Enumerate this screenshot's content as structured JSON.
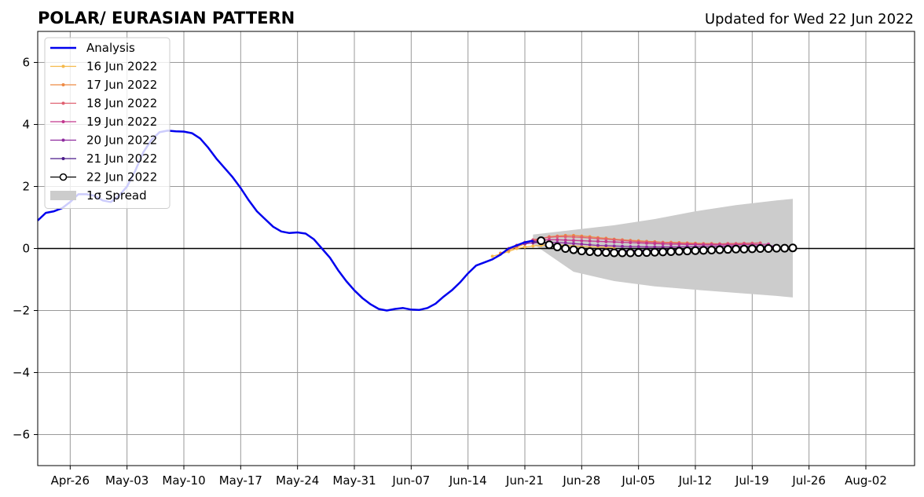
{
  "chart_data": {
    "type": "line",
    "title": "POLAR/ EURASIAN  PATTERN",
    "subtitle": "Updated for Wed 22 Jun 2022",
    "xlabel": "",
    "ylabel": "",
    "x_axis": {
      "type": "date",
      "range": [
        "2022-04-22",
        "2022-08-08"
      ],
      "ticks": [
        "2022-04-26",
        "2022-05-03",
        "2022-05-10",
        "2022-05-17",
        "2022-05-24",
        "2022-05-31",
        "2022-06-07",
        "2022-06-14",
        "2022-06-21",
        "2022-06-28",
        "2022-07-05",
        "2022-07-12",
        "2022-07-19",
        "2022-07-26",
        "2022-08-02"
      ],
      "tick_labels": [
        "Apr-26",
        "May-03",
        "May-10",
        "May-17",
        "May-24",
        "May-31",
        "Jun-07",
        "Jun-14",
        "Jun-21",
        "Jun-28",
        "Jul-05",
        "Jul-12",
        "Jul-19",
        "Jul-26",
        "Aug-02"
      ]
    },
    "y_axis": {
      "range": [
        -7,
        7
      ],
      "ticks": [
        -6,
        -4,
        -2,
        0,
        2,
        4,
        6
      ],
      "tick_labels": [
        "−6",
        "−4",
        "−2",
        "0",
        "2",
        "4",
        "6"
      ]
    },
    "grid": true,
    "zero_line": true,
    "legend_position": "top-left",
    "spread_color": "#cccccc",
    "spread_label": "1σ Spread",
    "spread": {
      "x": [
        "2022-06-22",
        "2022-06-27",
        "2022-07-02",
        "2022-07-07",
        "2022-07-12",
        "2022-07-17",
        "2022-07-22",
        "2022-07-24"
      ],
      "upper": [
        0.45,
        0.6,
        0.75,
        0.95,
        1.2,
        1.4,
        1.55,
        1.6
      ],
      "lower": [
        0.15,
        -0.75,
        -1.05,
        -1.22,
        -1.33,
        -1.43,
        -1.53,
        -1.58
      ]
    },
    "analysis": {
      "name": "Analysis",
      "color": "#0000ee",
      "x": [
        "2022-04-22",
        "2022-04-23",
        "2022-04-24",
        "2022-04-25",
        "2022-04-26",
        "2022-04-27",
        "2022-04-28",
        "2022-04-29",
        "2022-04-30",
        "2022-05-01",
        "2022-05-02",
        "2022-05-03",
        "2022-05-04",
        "2022-05-05",
        "2022-05-06",
        "2022-05-07",
        "2022-05-08",
        "2022-05-09",
        "2022-05-10",
        "2022-05-11",
        "2022-05-12",
        "2022-05-13",
        "2022-05-14",
        "2022-05-15",
        "2022-05-16",
        "2022-05-17",
        "2022-05-18",
        "2022-05-19",
        "2022-05-20",
        "2022-05-21",
        "2022-05-22",
        "2022-05-23",
        "2022-05-24",
        "2022-05-25",
        "2022-05-26",
        "2022-05-27",
        "2022-05-28",
        "2022-05-29",
        "2022-05-30",
        "2022-05-31",
        "2022-06-01",
        "2022-06-02",
        "2022-06-03",
        "2022-06-04",
        "2022-06-05",
        "2022-06-06",
        "2022-06-07",
        "2022-06-08",
        "2022-06-09",
        "2022-06-10",
        "2022-06-11",
        "2022-06-12",
        "2022-06-13",
        "2022-06-14",
        "2022-06-15",
        "2022-06-16",
        "2022-06-17",
        "2022-06-18",
        "2022-06-19",
        "2022-06-20",
        "2022-06-21",
        "2022-06-22"
      ],
      "y": [
        0.9,
        1.15,
        1.2,
        1.3,
        1.5,
        1.75,
        1.75,
        1.7,
        1.55,
        1.5,
        1.7,
        2.0,
        2.5,
        3.1,
        3.5,
        3.75,
        3.8,
        3.78,
        3.77,
        3.72,
        3.55,
        3.25,
        2.9,
        2.6,
        2.3,
        1.95,
        1.55,
        1.2,
        0.95,
        0.7,
        0.55,
        0.5,
        0.52,
        0.48,
        0.3,
        0.0,
        -0.3,
        -0.7,
        -1.05,
        -1.35,
        -1.6,
        -1.8,
        -1.95,
        -2.0,
        -1.95,
        -1.92,
        -1.97,
        -1.98,
        -1.92,
        -1.78,
        -1.55,
        -1.35,
        -1.1,
        -0.8,
        -0.55,
        -0.45,
        -0.35,
        -0.2,
        0.0,
        0.1,
        0.2,
        0.25
      ]
    },
    "series": [
      {
        "name": "16 Jun 2022",
        "color": "#f5b94a",
        "x": [
          "2022-06-17",
          "2022-06-18",
          "2022-06-19",
          "2022-06-20",
          "2022-06-21",
          "2022-06-22",
          "2022-06-23",
          "2022-06-24",
          "2022-06-25",
          "2022-06-26",
          "2022-06-27",
          "2022-06-28",
          "2022-06-29",
          "2022-06-30",
          "2022-07-01",
          "2022-07-02"
        ],
        "y": [
          -0.25,
          -0.18,
          -0.1,
          0.0,
          0.05,
          0.08,
          0.1,
          0.12,
          0.12,
          0.1,
          0.08,
          0.06,
          0.05,
          0.05,
          0.04,
          0.03
        ]
      },
      {
        "name": "17 Jun 2022",
        "color": "#ee8a44",
        "x": [
          "2022-06-18",
          "2022-06-19",
          "2022-06-20",
          "2022-06-21",
          "2022-06-22",
          "2022-06-23",
          "2022-06-24",
          "2022-06-25",
          "2022-06-26",
          "2022-06-27",
          "2022-06-28",
          "2022-06-29",
          "2022-06-30",
          "2022-07-01",
          "2022-07-02",
          "2022-07-03",
          "2022-07-04",
          "2022-07-05",
          "2022-07-06",
          "2022-07-07",
          "2022-07-08",
          "2022-07-09",
          "2022-07-10",
          "2022-07-11",
          "2022-07-12",
          "2022-07-13",
          "2022-07-14",
          "2022-07-15",
          "2022-07-16",
          "2022-07-17",
          "2022-07-18",
          "2022-07-19"
        ],
        "y": [
          -0.15,
          -0.05,
          0.05,
          0.15,
          0.25,
          0.32,
          0.38,
          0.4,
          0.42,
          0.42,
          0.4,
          0.38,
          0.35,
          0.33,
          0.3,
          0.28,
          0.26,
          0.25,
          0.23,
          0.22,
          0.2,
          0.2,
          0.19,
          0.18,
          0.17,
          0.16,
          0.16,
          0.15,
          0.15,
          0.15,
          0.16,
          0.17
        ]
      },
      {
        "name": "18 Jun 2022",
        "color": "#e06070",
        "x": [
          "2022-06-19",
          "2022-06-20",
          "2022-06-21",
          "2022-06-22",
          "2022-06-23",
          "2022-06-24",
          "2022-06-25",
          "2022-06-26",
          "2022-06-27",
          "2022-06-28",
          "2022-06-29",
          "2022-06-30",
          "2022-07-01",
          "2022-07-02",
          "2022-07-03",
          "2022-07-04",
          "2022-07-05",
          "2022-07-06",
          "2022-07-07",
          "2022-07-08",
          "2022-07-09",
          "2022-07-10",
          "2022-07-11",
          "2022-07-12",
          "2022-07-13",
          "2022-07-14",
          "2022-07-15",
          "2022-07-16",
          "2022-07-17",
          "2022-07-18",
          "2022-07-19",
          "2022-07-20"
        ],
        "y": [
          0.0,
          0.1,
          0.2,
          0.28,
          0.33,
          0.36,
          0.38,
          0.38,
          0.37,
          0.36,
          0.34,
          0.32,
          0.3,
          0.28,
          0.26,
          0.24,
          0.22,
          0.21,
          0.2,
          0.19,
          0.18,
          0.17,
          0.16,
          0.15,
          0.15,
          0.15,
          0.15,
          0.16,
          0.16,
          0.17,
          0.17,
          0.18
        ]
      },
      {
        "name": "19 Jun 2022",
        "color": "#c2378e",
        "x": [
          "2022-06-20",
          "2022-06-21",
          "2022-06-22",
          "2022-06-23",
          "2022-06-24",
          "2022-06-25",
          "2022-06-26",
          "2022-06-27",
          "2022-06-28",
          "2022-06-29",
          "2022-06-30",
          "2022-07-01",
          "2022-07-02",
          "2022-07-03",
          "2022-07-04",
          "2022-07-05",
          "2022-07-06",
          "2022-07-07",
          "2022-07-08",
          "2022-07-09",
          "2022-07-10",
          "2022-07-11",
          "2022-07-12",
          "2022-07-13",
          "2022-07-14",
          "2022-07-15",
          "2022-07-16",
          "2022-07-17",
          "2022-07-18",
          "2022-07-19",
          "2022-07-20",
          "2022-07-21"
        ],
        "y": [
          0.1,
          0.18,
          0.24,
          0.27,
          0.28,
          0.28,
          0.27,
          0.26,
          0.25,
          0.24,
          0.23,
          0.22,
          0.21,
          0.2,
          0.19,
          0.18,
          0.17,
          0.16,
          0.15,
          0.14,
          0.14,
          0.13,
          0.13,
          0.12,
          0.12,
          0.12,
          0.12,
          0.12,
          0.13,
          0.13,
          0.13,
          0.14
        ]
      },
      {
        "name": "20 Jun 2022",
        "color": "#8e2a9e",
        "x": [
          "2022-06-21",
          "2022-06-22",
          "2022-06-23",
          "2022-06-24",
          "2022-06-25",
          "2022-06-26",
          "2022-06-27",
          "2022-06-28",
          "2022-06-29",
          "2022-06-30",
          "2022-07-01",
          "2022-07-02",
          "2022-07-03",
          "2022-07-04",
          "2022-07-05",
          "2022-07-06",
          "2022-07-07",
          "2022-07-08",
          "2022-07-09",
          "2022-07-10",
          "2022-07-11",
          "2022-07-12",
          "2022-07-13",
          "2022-07-14",
          "2022-07-15",
          "2022-07-16",
          "2022-07-17",
          "2022-07-18",
          "2022-07-19",
          "2022-07-20",
          "2022-07-21",
          "2022-07-22"
        ],
        "y": [
          0.15,
          0.18,
          0.2,
          0.2,
          0.19,
          0.18,
          0.16,
          0.14,
          0.12,
          0.1,
          0.09,
          0.08,
          0.07,
          0.06,
          0.06,
          0.05,
          0.05,
          0.05,
          0.05,
          0.05,
          0.06,
          0.06,
          0.06,
          0.06,
          0.07,
          0.07,
          0.07,
          0.07,
          0.08,
          0.08,
          0.08,
          0.08
        ]
      },
      {
        "name": "21 Jun 2022",
        "color": "#4a1a8a",
        "x": [
          "2022-06-22",
          "2022-06-23",
          "2022-06-24",
          "2022-06-25",
          "2022-06-26",
          "2022-06-27",
          "2022-06-28",
          "2022-06-29",
          "2022-06-30",
          "2022-07-01",
          "2022-07-02",
          "2022-07-03",
          "2022-07-04",
          "2022-07-05",
          "2022-07-06",
          "2022-07-07",
          "2022-07-08",
          "2022-07-09",
          "2022-07-10",
          "2022-07-11",
          "2022-07-12",
          "2022-07-13",
          "2022-07-14",
          "2022-07-15",
          "2022-07-16",
          "2022-07-17",
          "2022-07-18",
          "2022-07-19",
          "2022-07-20",
          "2022-07-21",
          "2022-07-22",
          "2022-07-23"
        ],
        "y": [
          0.22,
          0.2,
          0.16,
          0.1,
          0.04,
          0.0,
          -0.03,
          -0.05,
          -0.06,
          -0.07,
          -0.07,
          -0.07,
          -0.06,
          -0.06,
          -0.05,
          -0.05,
          -0.04,
          -0.04,
          -0.03,
          -0.03,
          -0.02,
          -0.02,
          -0.02,
          -0.01,
          -0.01,
          -0.01,
          0.0,
          0.0,
          0.0,
          0.0,
          0.01,
          0.01
        ]
      },
      {
        "name": "22 Jun 2022",
        "color": "#000000",
        "marker_fill": "#ffffff",
        "x": [
          "2022-06-23",
          "2022-06-24",
          "2022-06-25",
          "2022-06-26",
          "2022-06-27",
          "2022-06-28",
          "2022-06-29",
          "2022-06-30",
          "2022-07-01",
          "2022-07-02",
          "2022-07-03",
          "2022-07-04",
          "2022-07-05",
          "2022-07-06",
          "2022-07-07",
          "2022-07-08",
          "2022-07-09",
          "2022-07-10",
          "2022-07-11",
          "2022-07-12",
          "2022-07-13",
          "2022-07-14",
          "2022-07-15",
          "2022-07-16",
          "2022-07-17",
          "2022-07-18",
          "2022-07-19",
          "2022-07-20",
          "2022-07-21",
          "2022-07-22",
          "2022-07-23",
          "2022-07-24"
        ],
        "y": [
          0.25,
          0.12,
          0.05,
          0.0,
          -0.04,
          -0.08,
          -0.1,
          -0.12,
          -0.13,
          -0.14,
          -0.14,
          -0.14,
          -0.13,
          -0.13,
          -0.12,
          -0.11,
          -0.1,
          -0.09,
          -0.08,
          -0.07,
          -0.06,
          -0.05,
          -0.04,
          -0.03,
          -0.02,
          -0.02,
          -0.01,
          0.0,
          0.0,
          0.01,
          0.01,
          0.02
        ]
      }
    ]
  }
}
